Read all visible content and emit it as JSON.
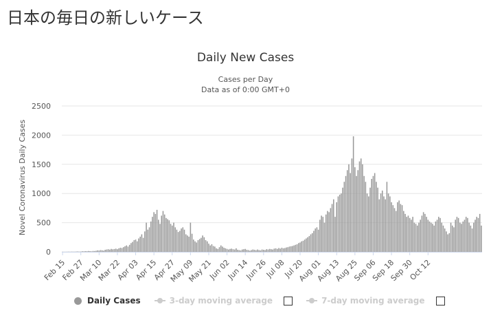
{
  "page": {
    "heading": "日本の毎日の新しいケース"
  },
  "chart_data": {
    "type": "bar",
    "title": "Daily New Cases",
    "subtitle_lines": [
      "Cases per Day",
      "Data as of 0:00 GMT+0"
    ],
    "ylabel": "Novel Coronavirus Daily Cases",
    "xlabel": "",
    "ylim": [
      0,
      2500
    ],
    "yticks": [
      0,
      500,
      1000,
      1500,
      2000,
      2500
    ],
    "grid": true,
    "legend_position": "bottom",
    "bar_color": "#999999",
    "start_date": "Feb 15",
    "x_tick_labels": [
      "Feb 15",
      "Feb 27",
      "Mar 10",
      "Mar 22",
      "Apr 03",
      "Apr 15",
      "Apr 27",
      "May 09",
      "May 21",
      "Jun 02",
      "Jun 14",
      "Jun 26",
      "Jul 08",
      "Jul 20",
      "Aug 01",
      "Aug 13",
      "Aug 25",
      "Sep 06",
      "Sep 18",
      "Sep 30",
      "Oct 12"
    ],
    "series": [
      {
        "name": "Daily Cases",
        "values": [
          1,
          0,
          0,
          1,
          2,
          1,
          3,
          2,
          2,
          4,
          6,
          3,
          5,
          10,
          8,
          12,
          10,
          14,
          12,
          8,
          15,
          14,
          18,
          25,
          22,
          30,
          26,
          20,
          35,
          40,
          45,
          38,
          50,
          43,
          48,
          55,
          45,
          60,
          70,
          65,
          80,
          95,
          110,
          90,
          120,
          150,
          170,
          200,
          210,
          180,
          230,
          260,
          300,
          240,
          350,
          500,
          380,
          420,
          520,
          600,
          680,
          650,
          720,
          550,
          480,
          620,
          700,
          640,
          580,
          560,
          540,
          480,
          450,
          500,
          420,
          380,
          340,
          360,
          400,
          420,
          380,
          300,
          280,
          260,
          500,
          310,
          210,
          180,
          160,
          200,
          220,
          240,
          280,
          250,
          200,
          180,
          140,
          110,
          130,
          100,
          90,
          60,
          50,
          80,
          110,
          90,
          70,
          60,
          50,
          40,
          50,
          55,
          45,
          40,
          60,
          35,
          30,
          25,
          40,
          45,
          50,
          35,
          30,
          20,
          30,
          40,
          35,
          28,
          40,
          30,
          25,
          40,
          35,
          30,
          45,
          40,
          50,
          45,
          40,
          55,
          60,
          50,
          65,
          55,
          70,
          60,
          65,
          75,
          80,
          90,
          95,
          100,
          110,
          120,
          130,
          150,
          160,
          180,
          190,
          210,
          230,
          250,
          270,
          300,
          320,
          360,
          400,
          420,
          380,
          550,
          620,
          600,
          500,
          640,
          700,
          680,
          750,
          820,
          900,
          600,
          850,
          950,
          980,
          1000,
          1100,
          1200,
          1300,
          1400,
          1500,
          1350,
          1600,
          1980,
          1450,
          1300,
          1400,
          1550,
          1600,
          1500,
          1300,
          1200,
          1000,
          950,
          1100,
          1250,
          1300,
          1350,
          1200,
          1100,
          900,
          1000,
          1050,
          950,
          900,
          1200,
          1000,
          950,
          850,
          800,
          750,
          700,
          850,
          880,
          820,
          800,
          700,
          650,
          600,
          620,
          580,
          550,
          600,
          500,
          480,
          450,
          500,
          550,
          620,
          680,
          650,
          600,
          550,
          520,
          500,
          480,
          450,
          520,
          550,
          600,
          580,
          500,
          450,
          400,
          350,
          300,
          320,
          500,
          450,
          420,
          550,
          600,
          580,
          500,
          480,
          520,
          550,
          600,
          580,
          500,
          450,
          400,
          500,
          550,
          600,
          580,
          650,
          450
        ]
      }
    ]
  },
  "legend": {
    "items": [
      {
        "label": "Daily Cases",
        "active": true
      },
      {
        "label": "3-day moving average",
        "active": false
      },
      {
        "label": "7-day moving average",
        "active": false
      }
    ]
  }
}
